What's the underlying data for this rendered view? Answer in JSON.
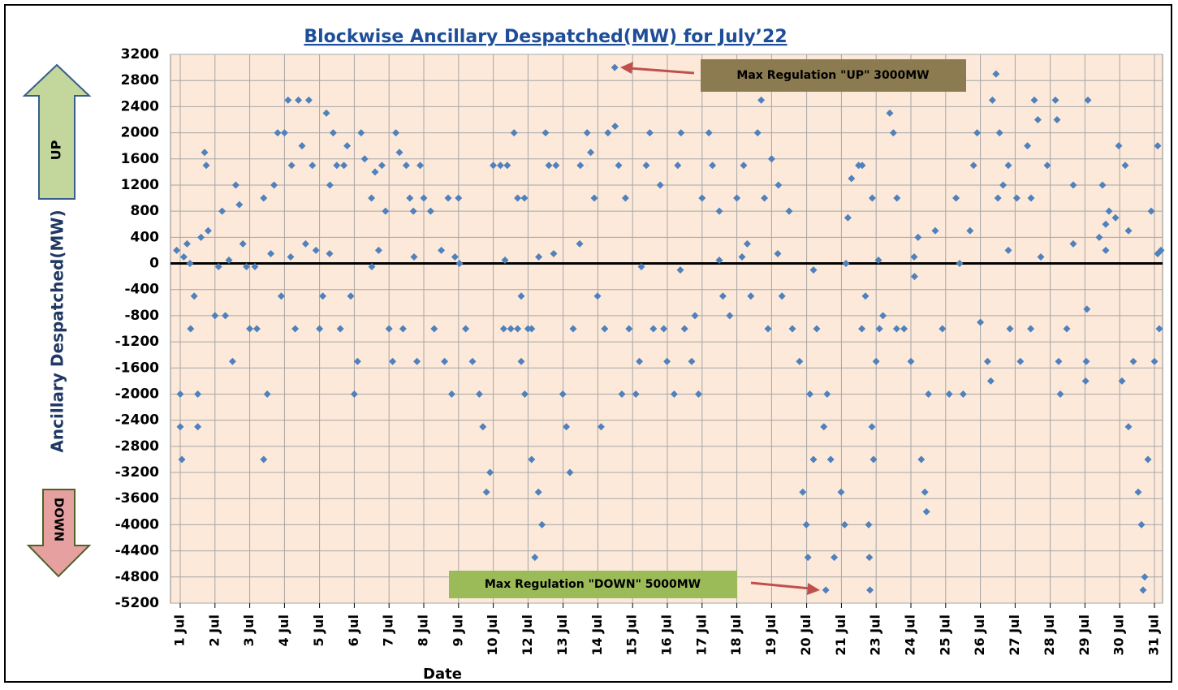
{
  "chart_data": {
    "type": "scatter",
    "title": "Blockwise Ancillary Despatched(MW) for  July’22",
    "x_label": "Date",
    "y_label": "Ancillary Despatched(MW)",
    "side_labels": {
      "up": "UP",
      "down": "DOWN"
    },
    "annotations": [
      "Max Regulation \"UP\" 3000MW",
      "Max Regulation \"DOWN\" 5000MW"
    ],
    "xlim": [
      0.7,
      31.25
    ],
    "xticks": [
      {
        "value": 1,
        "label": "1 Jul"
      },
      {
        "value": 2.07,
        "label": "2 Jul"
      },
      {
        "value": 3.14,
        "label": "3 Jul"
      },
      {
        "value": 4.21,
        "label": "4 Jul"
      },
      {
        "value": 5.29,
        "label": "5 Jul"
      },
      {
        "value": 6.36,
        "label": "6 Jul"
      },
      {
        "value": 7.43,
        "label": "7 Jul"
      },
      {
        "value": 8.5,
        "label": "8 Jul"
      },
      {
        "value": 9.57,
        "label": "9 Jul"
      },
      {
        "value": 10.64,
        "label": "10 Jul"
      },
      {
        "value": 11.71,
        "label": "12 Jul"
      },
      {
        "value": 12.79,
        "label": "13 Jul"
      },
      {
        "value": 13.86,
        "label": "14 Jul"
      },
      {
        "value": 14.93,
        "label": "15 Jul"
      },
      {
        "value": 16,
        "label": "16 Jul"
      },
      {
        "value": 17.07,
        "label": "17 Jul"
      },
      {
        "value": 18.14,
        "label": "18 Jul"
      },
      {
        "value": 19.21,
        "label": "19 Jul"
      },
      {
        "value": 20.29,
        "label": "20 Jul"
      },
      {
        "value": 21.36,
        "label": "21 Jul"
      },
      {
        "value": 22.43,
        "label": "23 Jul"
      },
      {
        "value": 23.5,
        "label": "24 Jul"
      },
      {
        "value": 24.57,
        "label": "25 Jul"
      },
      {
        "value": 25.64,
        "label": "26 Jul"
      },
      {
        "value": 26.71,
        "label": "27 Jul"
      },
      {
        "value": 27.79,
        "label": "28 Jul"
      },
      {
        "value": 28.86,
        "label": "29 Jul"
      },
      {
        "value": 29.93,
        "label": "30 Jul"
      },
      {
        "value": 31,
        "label": "31 Jul"
      }
    ],
    "ylim": [
      -5200,
      3200
    ],
    "yticks": [
      -5200,
      -4800,
      -4400,
      -4000,
      -3600,
      -3200,
      -2800,
      -2400,
      -2000,
      -1600,
      -1200,
      -800,
      -400,
      0,
      400,
      800,
      1200,
      1600,
      2000,
      2400,
      2800,
      3200
    ],
    "grid": true,
    "color": "#4f81bd",
    "x": [
      0.89,
      1,
      1,
      1.05,
      1.11,
      1.21,
      1.32,
      1.43,
      1.54,
      1.54,
      1.64,
      1.75,
      1.8,
      1.86,
      2.07,
      2.18,
      2.29,
      2.39,
      2.61,
      2.71,
      2.82,
      2.93,
      3.04,
      3.14,
      3.36,
      3.57,
      3.57,
      3.68,
      3.79,
      3.89,
      4,
      4.11,
      4.21,
      4.32,
      4.43,
      4.54,
      4.64,
      4.75,
      4.86,
      4.96,
      5.07,
      5.18,
      5.29,
      5.39,
      5.5,
      5.61,
      5.71,
      5.82,
      5.93,
      6.04,
      6.14,
      6.25,
      6.36,
      6.46,
      6.57,
      6.68,
      6.89,
      7,
      7.11,
      7.21,
      7.32,
      7.43,
      7.54,
      7.64,
      7.75,
      7.86,
      7.96,
      8.07,
      8.18,
      8.29,
      8.39,
      8.5,
      8.71,
      8.82,
      9.04,
      9.14,
      9.25,
      9.36,
      9.46,
      9.57,
      9.79,
      10,
      10.21,
      10.32,
      10.43,
      10.54,
      10.64,
      10.86,
      10.96,
      11.18,
      11.39,
      11.5,
      11.61,
      11.82,
      12.04,
      11.07,
      11.28,
      11.39,
      11.5,
      11.6,
      11.71,
      11.82,
      11.92,
      12.03,
      12.14,
      12.25,
      12.35,
      12.57,
      12.78,
      12.89,
      13,
      13.1,
      13.32,
      13.53,
      13.64,
      13.75,
      13.85,
      13.96,
      14.07,
      14.17,
      14.38,
      14.39,
      14.5,
      14.6,
      14.71,
      14.82,
      15.03,
      15.14,
      15.35,
      15.46,
      15.57,
      15.78,
      15.89,
      15.99,
      16.21,
      16.32,
      16.42,
      16.53,
      16.75,
      16.85,
      16.96,
      17.07,
      17.28,
      17.39,
      17.6,
      17.71,
      17.92,
      18.14,
      18.35,
      18.46,
      18.57,
      18.78,
      18.89,
      18.99,
      19.1,
      19.21,
      19.42,
      19.53,
      19.75,
      19.85,
      20.07,
      20.17,
      20.28,
      20.33,
      20.39,
      20.5,
      20.6,
      20.82,
      20.88,
      20.92,
      21.03,
      21.14,
      21.35,
      21.46,
      21.56,
      21.67,
      21.89,
      21.99,
      22.1,
      22.31,
      22.53,
      22.64,
      22.85,
      22.96,
      23.06,
      22.0,
      22.43,
      22.2,
      22.22,
      22.24,
      22.3,
      22.35,
      23.07,
      23.29,
      23.5,
      23.61,
      23.72,
      23.82,
      23.93,
      23.98,
      24.04,
      24.25,
      24.47,
      24.68,
      24.89,
      25.11,
      25.32,
      25.43,
      25.54,
      25.64,
      25.86,
      25.96,
      26.18,
      26.5,
      26.01,
      26.12,
      26.23,
      26.34,
      26.55,
      26.76,
      26.87,
      27.09,
      27.19,
      27.3,
      27.41,
      27.95,
      28.0,
      28.05,
      28.1,
      28.9,
      28.95,
      28.3,
      28.5,
      28.88,
      28.92,
      29.4,
      29.9,
      30.0,
      30.1,
      30.2,
      30.35,
      30.5,
      30.6,
      30.65,
      30.7,
      30.8,
      30.9,
      31.0,
      31.1,
      31.15,
      31.2,
      1.3,
      2.5,
      3.3,
      4.4,
      5.6,
      6.9,
      8.2,
      9.6,
      11.0,
      12.5,
      13.3,
      15.2,
      16.4,
      17.6,
      18.3,
      19.4,
      20.5,
      21.5,
      22.5,
      23.6,
      25.0,
      26.5,
      27.5,
      28.5,
      29.5,
      30.2,
      31.1,
      29.3,
      29.5,
      29.6,
      29.8,
      27.7,
      27.2
    ],
    "values": [
      200,
      -2000,
      -2500,
      -3000,
      100,
      300,
      -1000,
      -500,
      -2000,
      -2500,
      400,
      1700,
      1500,
      500,
      -800,
      -50,
      800,
      -800,
      -1500,
      1200,
      900,
      300,
      -50,
      -1000,
      -1000,
      -3000,
      1000,
      -2000,
      150,
      1200,
      2000,
      -500,
      2000,
      2500,
      1500,
      -1000,
      2500,
      1800,
      300,
      2500,
      1500,
      200,
      -1000,
      -500,
      2300,
      1200,
      2000,
      1500,
      -1000,
      1500,
      1800,
      -500,
      -2000,
      -1500,
      2000,
      1600,
      1000,
      1400,
      200,
      1500,
      800,
      -1000,
      -1500,
      2000,
      1700,
      -1000,
      1500,
      1000,
      800,
      -1500,
      1500,
      1000,
      800,
      -1000,
      200,
      -1500,
      1000,
      -2000,
      100,
      1000,
      -1000,
      -1500,
      -2000,
      -2500,
      -3500,
      -3200,
      1500,
      1500,
      -1000,
      -1000,
      1000,
      -1500,
      -2000,
      -1000,
      100,
      1500,
      2000,
      -1000,
      -500,
      1000,
      -1000,
      -3000,
      -4500,
      -3500,
      -4000,
      2000,
      1500,
      1500,
      -2000,
      -2500,
      -3200,
      -1000,
      1500,
      2000,
      1700,
      1000,
      -500,
      -2500,
      -1000,
      2000,
      3000,
      2100,
      1500,
      -2000,
      1000,
      -1000,
      -2000,
      -1500,
      1500,
      2000,
      -1000,
      1200,
      -1000,
      -1500,
      -2000,
      1500,
      2000,
      -1000,
      -1500,
      -800,
      -2000,
      1000,
      2000,
      1500,
      800,
      -500,
      -800,
      1000,
      1500,
      300,
      -500,
      2000,
      2500,
      1000,
      -1000,
      1600,
      1200,
      -500,
      800,
      -1000,
      -1500,
      -3500,
      -4000,
      -4500,
      -2000,
      -3000,
      -1000,
      -2500,
      -5000,
      -2000,
      -3000,
      -4500,
      -3500,
      -4000,
      700,
      1300,
      1500,
      -1000,
      -500,
      1000,
      -1000,
      -800,
      2300,
      2000,
      -1000,
      1500,
      -1500,
      -4000,
      -4500,
      -5000,
      -2500,
      -3000,
      1000,
      -1000,
      -1500,
      -200,
      400,
      -3000,
      -3500,
      -3800,
      -2000,
      500,
      -1000,
      -2000,
      1000,
      -2000,
      500,
      1500,
      2000,
      -900,
      -1500,
      -1800,
      1000,
      1500,
      2500,
      2900,
      2000,
      1200,
      -1000,
      1000,
      -1500,
      1800,
      -1000,
      2500,
      2200,
      2500,
      2200,
      -1500,
      -2000,
      -1500,
      2500,
      -1000,
      1200,
      -1800,
      -700,
      1200,
      1800,
      -1800,
      1500,
      -2500,
      -1500,
      -3500,
      -4000,
      -5000,
      -4800,
      -3000,
      800,
      -1500,
      1800,
      -1000,
      200,
      0,
      50,
      -50,
      100,
      150,
      -50,
      100,
      0,
      50,
      150,
      300,
      -50,
      -100,
      50,
      100,
      150,
      -100,
      0,
      50,
      100,
      0,
      200,
      100,
      300,
      200,
      500,
      150,
      400,
      600,
      800,
      700,
      1500,
      1000
    ]
  }
}
